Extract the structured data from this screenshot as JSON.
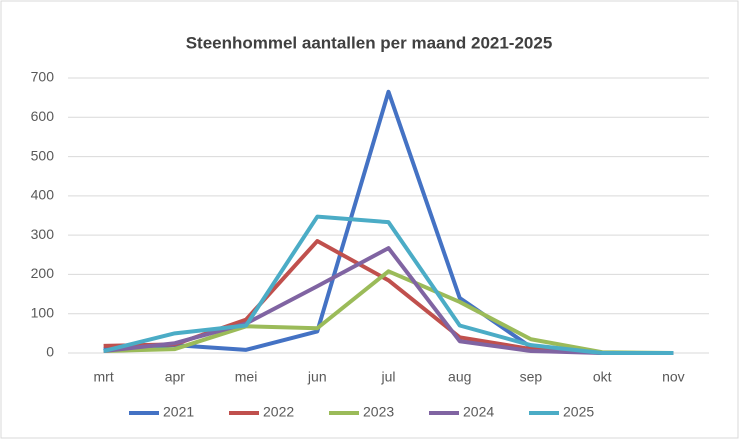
{
  "chart_data": {
    "type": "line",
    "title": "Steenhommel aantallen per maand 2021-2025",
    "categories": [
      "mrt",
      "apr",
      "mei",
      "jun",
      "jul",
      "aug",
      "sep",
      "okt",
      "nov"
    ],
    "series": [
      {
        "name": "2021",
        "color": "#4472c4",
        "values": [
          10,
          20,
          8,
          55,
          665,
          140,
          15,
          0,
          0
        ]
      },
      {
        "name": "2022",
        "color": "#c0504d",
        "values": [
          18,
          22,
          85,
          285,
          185,
          40,
          10,
          0,
          0
        ]
      },
      {
        "name": "2023",
        "color": "#9bbb59",
        "values": [
          5,
          10,
          68,
          63,
          208,
          130,
          35,
          2,
          0
        ]
      },
      {
        "name": "2024",
        "color": "#8064a2",
        "values": [
          5,
          25,
          75,
          170,
          267,
          30,
          5,
          0,
          0
        ]
      },
      {
        "name": "2025",
        "color": "#4bacc6",
        "values": [
          5,
          50,
          70,
          347,
          333,
          70,
          20,
          0,
          0
        ]
      }
    ],
    "ylim": [
      0,
      700
    ],
    "yticks": [
      0,
      100,
      200,
      300,
      400,
      500,
      600,
      700
    ],
    "grid": true,
    "legend": "bottom"
  }
}
